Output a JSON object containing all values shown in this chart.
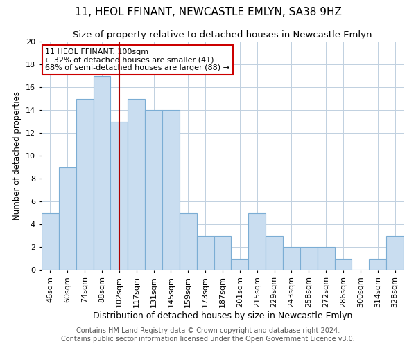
{
  "title": "11, HEOL FFINANT, NEWCASTLE EMLYN, SA38 9HZ",
  "subtitle": "Size of property relative to detached houses in Newcastle Emlyn",
  "xlabel": "Distribution of detached houses by size in Newcastle Emlyn",
  "ylabel": "Number of detached properties",
  "categories": [
    "46sqm",
    "60sqm",
    "74sqm",
    "88sqm",
    "102sqm",
    "117sqm",
    "131sqm",
    "145sqm",
    "159sqm",
    "173sqm",
    "187sqm",
    "201sqm",
    "215sqm",
    "229sqm",
    "243sqm",
    "258sqm",
    "272sqm",
    "286sqm",
    "300sqm",
    "314sqm",
    "328sqm"
  ],
  "values": [
    5,
    9,
    15,
    17,
    13,
    15,
    14,
    14,
    5,
    3,
    3,
    1,
    5,
    3,
    2,
    2,
    2,
    1,
    0,
    1,
    3
  ],
  "bar_color": "#c9ddf0",
  "bar_edge_color": "#7badd4",
  "highlight_index": 4,
  "highlight_line_color": "#aa0000",
  "ylim": [
    0,
    20
  ],
  "yticks": [
    0,
    2,
    4,
    6,
    8,
    10,
    12,
    14,
    16,
    18,
    20
  ],
  "annotation_title": "11 HEOL FFINANT: 100sqm",
  "annotation_line1": "← 32% of detached houses are smaller (41)",
  "annotation_line2": "68% of semi-detached houses are larger (88) →",
  "annotation_box_color": "#ffffff",
  "annotation_box_edge": "#cc0000",
  "footer1": "Contains HM Land Registry data © Crown copyright and database right 2024.",
  "footer2": "Contains public sector information licensed under the Open Government Licence v3.0.",
  "background_color": "#ffffff",
  "grid_color": "#c0d0e0",
  "title_fontsize": 11,
  "subtitle_fontsize": 9.5,
  "xlabel_fontsize": 9,
  "ylabel_fontsize": 8.5,
  "footer_fontsize": 7,
  "tick_fontsize": 8,
  "annot_fontsize": 8
}
